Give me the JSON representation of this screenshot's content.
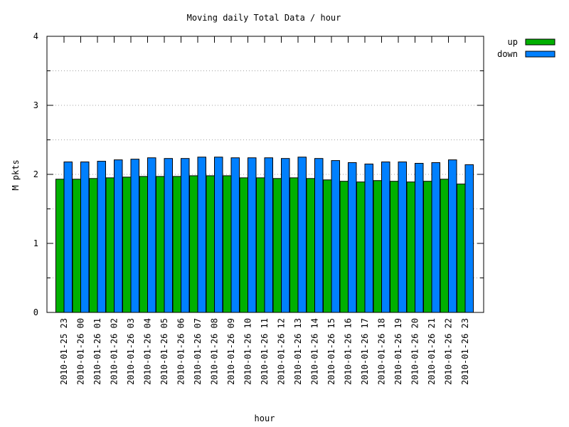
{
  "chart_data": {
    "type": "bar",
    "title": "Moving daily Total Data / hour",
    "xlabel": "hour",
    "ylabel": "M pkts",
    "ylim": [
      0,
      4
    ],
    "yticks": [
      "0",
      "1",
      "2",
      "3",
      "4"
    ],
    "grid": "horizontal dotted at 0.5 steps",
    "legend_position": "top-right outside",
    "categories": [
      "2010-01-25 23",
      "2010-01-26 00",
      "2010-01-26 01",
      "2010-01-26 02",
      "2010-01-26 03",
      "2010-01-26 04",
      "2010-01-26 05",
      "2010-01-26 06",
      "2010-01-26 07",
      "2010-01-26 08",
      "2010-01-26 09",
      "2010-01-26 10",
      "2010-01-26 11",
      "2010-01-26 12",
      "2010-01-26 13",
      "2010-01-26 14",
      "2010-01-26 15",
      "2010-01-26 16",
      "2010-01-26 17",
      "2010-01-26 18",
      "2010-01-26 19",
      "2010-01-26 20",
      "2010-01-26 21",
      "2010-01-26 22",
      "2010-01-26 23"
    ],
    "series": [
      {
        "name": "up",
        "color": "#00b000",
        "values": [
          1.93,
          1.93,
          1.94,
          1.95,
          1.96,
          1.97,
          1.97,
          1.97,
          1.98,
          1.98,
          1.98,
          1.95,
          1.95,
          1.94,
          1.95,
          1.94,
          1.92,
          1.9,
          1.89,
          1.91,
          1.9,
          1.89,
          1.9,
          1.93,
          1.86
        ]
      },
      {
        "name": "down",
        "color": "#0080ff",
        "values": [
          2.18,
          2.18,
          2.19,
          2.21,
          2.22,
          2.24,
          2.23,
          2.23,
          2.25,
          2.25,
          2.24,
          2.24,
          2.24,
          2.23,
          2.25,
          2.23,
          2.2,
          2.17,
          2.15,
          2.18,
          2.18,
          2.16,
          2.17,
          2.21,
          2.14
        ]
      }
    ]
  }
}
